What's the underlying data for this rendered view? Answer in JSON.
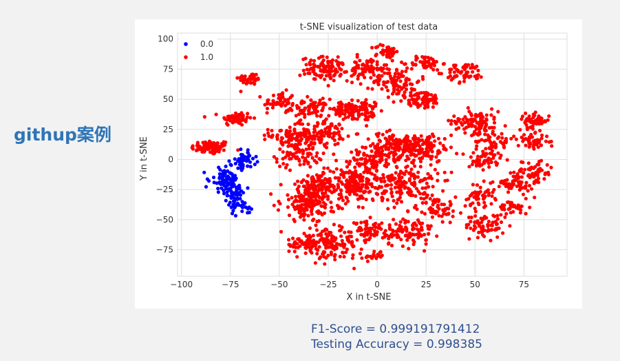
{
  "side_label": "githup案例",
  "metrics": {
    "f1_score": "F1-Score = 0.999191791412",
    "testing_accuracy": "Testing Accuracy = 0.998385"
  },
  "chart_data": {
    "type": "scatter",
    "title": "t-SNE visualization of test data",
    "xlabel": "X in t-SNE",
    "ylabel": "Y in t-SNE",
    "xlim": [
      -102,
      97
    ],
    "ylim": [
      -97,
      105
    ],
    "x_ticks": [
      -100,
      -75,
      -50,
      -25,
      0,
      25,
      50,
      75
    ],
    "x_tick_labels": [
      "−100",
      "−75",
      "−50",
      "−25",
      "0",
      "25",
      "50",
      "75"
    ],
    "y_ticks": [
      -75,
      -50,
      -25,
      0,
      25,
      50,
      75,
      100
    ],
    "y_tick_labels": [
      "−75",
      "−50",
      "−25",
      "0",
      "25",
      "50",
      "75",
      "100"
    ],
    "grid": true,
    "legend_position": "top-left",
    "series": [
      {
        "name": "0.0",
        "color": "#0000ff",
        "clusters": [
          {
            "cx": -78,
            "cy": -17,
            "sx": 3.5,
            "sy": 5,
            "n": 70
          },
          {
            "cx": -73,
            "cy": -28,
            "sx": 3,
            "sy": 5,
            "n": 40
          },
          {
            "cx": -69,
            "cy": -2,
            "sx": 2.5,
            "sy": 4,
            "n": 30
          },
          {
            "cx": -67,
            "cy": 1,
            "sx": 3,
            "sy": 2.5,
            "n": 20
          },
          {
            "cx": -70,
            "cy": -40,
            "sx": 2.5,
            "sy": 3,
            "n": 25
          }
        ]
      },
      {
        "name": "1.0",
        "color": "#ff0000",
        "clusters": [
          {
            "cx": -85,
            "cy": 10,
            "sx": 5,
            "sy": 3,
            "n": 80
          },
          {
            "cx": -72,
            "cy": 34,
            "sx": 4,
            "sy": 3,
            "n": 60
          },
          {
            "cx": -65,
            "cy": 67,
            "sx": 3,
            "sy": 2.5,
            "n": 40
          },
          {
            "cx": -50,
            "cy": 48,
            "sx": 4,
            "sy": 4,
            "n": 50
          },
          {
            "cx": -45,
            "cy": 20,
            "sx": 5,
            "sy": 4,
            "n": 60
          },
          {
            "cx": -40,
            "cy": 5,
            "sx": 6,
            "sy": 6,
            "n": 90
          },
          {
            "cx": -35,
            "cy": 42,
            "sx": 5,
            "sy": 4,
            "n": 70
          },
          {
            "cx": -25,
            "cy": 75,
            "sx": 7,
            "sy": 5,
            "n": 110
          },
          {
            "cx": -28,
            "cy": 22,
            "sx": 6,
            "sy": 5,
            "n": 100
          },
          {
            "cx": -15,
            "cy": 40,
            "sx": 7,
            "sy": 4,
            "n": 90
          },
          {
            "cx": -5,
            "cy": 75,
            "sx": 5,
            "sy": 5,
            "n": 70
          },
          {
            "cx": 5,
            "cy": 90,
            "sx": 3,
            "sy": 3,
            "n": 40
          },
          {
            "cx": 10,
            "cy": 65,
            "sx": 6,
            "sy": 6,
            "n": 80
          },
          {
            "cx": 25,
            "cy": 80,
            "sx": 4,
            "sy": 3,
            "n": 50
          },
          {
            "cx": 22,
            "cy": 50,
            "sx": 6,
            "sy": 4,
            "n": 80
          },
          {
            "cx": 45,
            "cy": 72,
            "sx": 5,
            "sy": 4,
            "n": 60
          },
          {
            "cx": 50,
            "cy": 32,
            "sx": 6,
            "sy": 5,
            "n": 100
          },
          {
            "cx": 60,
            "cy": 15,
            "sx": 5,
            "sy": 5,
            "n": 60
          },
          {
            "cx": 80,
            "cy": 32,
            "sx": 4,
            "sy": 3,
            "n": 50
          },
          {
            "cx": 80,
            "cy": 15,
            "sx": 4,
            "sy": 3,
            "n": 50
          },
          {
            "cx": 80,
            "cy": -10,
            "sx": 5,
            "sy": 5,
            "n": 60
          },
          {
            "cx": 70,
            "cy": -20,
            "sx": 5,
            "sy": 4,
            "n": 60
          },
          {
            "cx": 55,
            "cy": 0,
            "sx": 4,
            "sy": 4,
            "n": 50
          },
          {
            "cx": 70,
            "cy": -40,
            "sx": 4,
            "sy": 3,
            "n": 40
          },
          {
            "cx": 55,
            "cy": -55,
            "sx": 5,
            "sy": 5,
            "n": 70
          },
          {
            "cx": 52,
            "cy": -30,
            "sx": 4,
            "sy": 5,
            "n": 50
          },
          {
            "cx": 30,
            "cy": -40,
            "sx": 5,
            "sy": 5,
            "n": 60
          },
          {
            "cx": 15,
            "cy": -60,
            "sx": 7,
            "sy": 6,
            "n": 110
          },
          {
            "cx": 15,
            "cy": -20,
            "sx": 8,
            "sy": 8,
            "n": 150
          },
          {
            "cx": 10,
            "cy": 10,
            "sx": 8,
            "sy": 6,
            "n": 140
          },
          {
            "cx": 25,
            "cy": 10,
            "sx": 6,
            "sy": 6,
            "n": 100
          },
          {
            "cx": -3,
            "cy": 2,
            "sx": 6,
            "sy": 5,
            "n": 80
          },
          {
            "cx": -10,
            "cy": -20,
            "sx": 7,
            "sy": 8,
            "n": 180
          },
          {
            "cx": -35,
            "cy": -35,
            "sx": 7,
            "sy": 8,
            "n": 180
          },
          {
            "cx": -28,
            "cy": -20,
            "sx": 5,
            "sy": 5,
            "n": 80
          },
          {
            "cx": -25,
            "cy": -70,
            "sx": 8,
            "sy": 6,
            "n": 150
          },
          {
            "cx": -5,
            "cy": -60,
            "sx": 4,
            "sy": 4,
            "n": 50
          },
          {
            "cx": -2,
            "cy": -80,
            "sx": 2.5,
            "sy": 2,
            "n": 20
          },
          {
            "cx": -38,
            "cy": -70,
            "sx": 4,
            "sy": 3,
            "n": 40
          },
          {
            "cx": -5,
            "cy": 40,
            "sx": 4,
            "sy": 4,
            "n": 40
          }
        ]
      }
    ]
  }
}
